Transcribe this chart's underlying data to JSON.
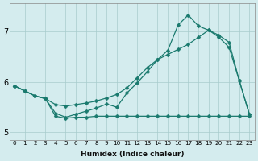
{
  "xlabel": "Humidex (Indice chaleur)",
  "bg_color": "#d4ecee",
  "grid_color": "#a8cccc",
  "line_color": "#1a7a6e",
  "xlim": [
    -0.5,
    23.5
  ],
  "ylim": [
    4.85,
    7.55
  ],
  "xticks": [
    0,
    1,
    2,
    3,
    4,
    5,
    6,
    7,
    8,
    9,
    10,
    11,
    12,
    13,
    14,
    15,
    16,
    17,
    18,
    19,
    20,
    21,
    22,
    23
  ],
  "yticks": [
    5,
    6,
    7
  ],
  "line1_y": [
    5.92,
    5.82,
    5.72,
    5.67,
    5.55,
    5.52,
    5.55,
    5.58,
    5.62,
    5.68,
    5.75,
    5.88,
    6.08,
    6.28,
    6.44,
    6.54,
    6.64,
    6.74,
    6.88,
    7.02,
    6.92,
    6.78,
    6.02,
    5.35
  ],
  "line2_y": [
    5.92,
    5.82,
    5.72,
    5.67,
    5.38,
    5.3,
    5.36,
    5.42,
    5.48,
    5.56,
    5.5,
    5.78,
    5.98,
    6.2,
    6.44,
    6.62,
    7.12,
    7.32,
    7.1,
    7.02,
    6.88,
    6.68,
    6.02,
    5.35
  ],
  "line3_y": [
    5.92,
    5.82,
    5.72,
    5.67,
    5.32,
    5.28,
    5.3,
    5.3,
    5.32,
    5.32,
    5.32,
    5.32,
    5.32,
    5.32,
    5.32,
    5.32,
    5.32,
    5.32,
    5.32,
    5.32,
    5.32,
    5.32,
    5.32,
    5.32
  ]
}
